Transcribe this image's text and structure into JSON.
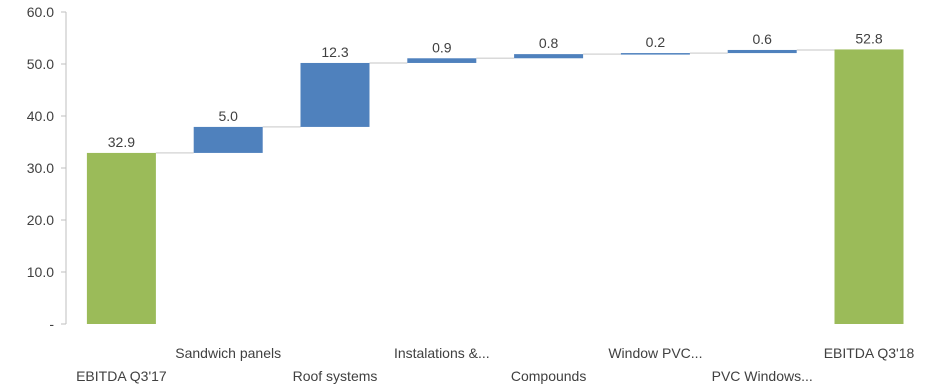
{
  "chart_data": {
    "type": "bar",
    "subtype": "waterfall",
    "categories": [
      "EBITDA Q3'17",
      "Sandwich panels",
      "Roof systems",
      "Instalations &...",
      "Compounds",
      "Window PVC...",
      "PVC Windows...",
      "EBITDA Q3'18"
    ],
    "values": [
      32.9,
      5.0,
      12.3,
      0.9,
      0.8,
      0.2,
      0.6,
      52.8
    ],
    "value_labels": [
      "32.9",
      "5.0",
      "12.3",
      "0.9",
      "0.8",
      "0.2",
      "0.6",
      "52.8"
    ],
    "bar_kind": [
      "total",
      "increase",
      "increase",
      "increase",
      "increase",
      "increase",
      "increase",
      "total"
    ],
    "ylim": [
      0,
      60
    ],
    "yticks": [
      0,
      10,
      20,
      30,
      40,
      50,
      60
    ],
    "ytick_labels": [
      "-",
      "10.0",
      "20.0",
      "30.0",
      "40.0",
      "50.0",
      "60.0"
    ],
    "grid": false,
    "colors": {
      "total": "#9bbb59",
      "increase": "#4f81bd",
      "connector": "#d9d9d9",
      "axis": "#bfbfbf",
      "text": "#404040"
    }
  }
}
